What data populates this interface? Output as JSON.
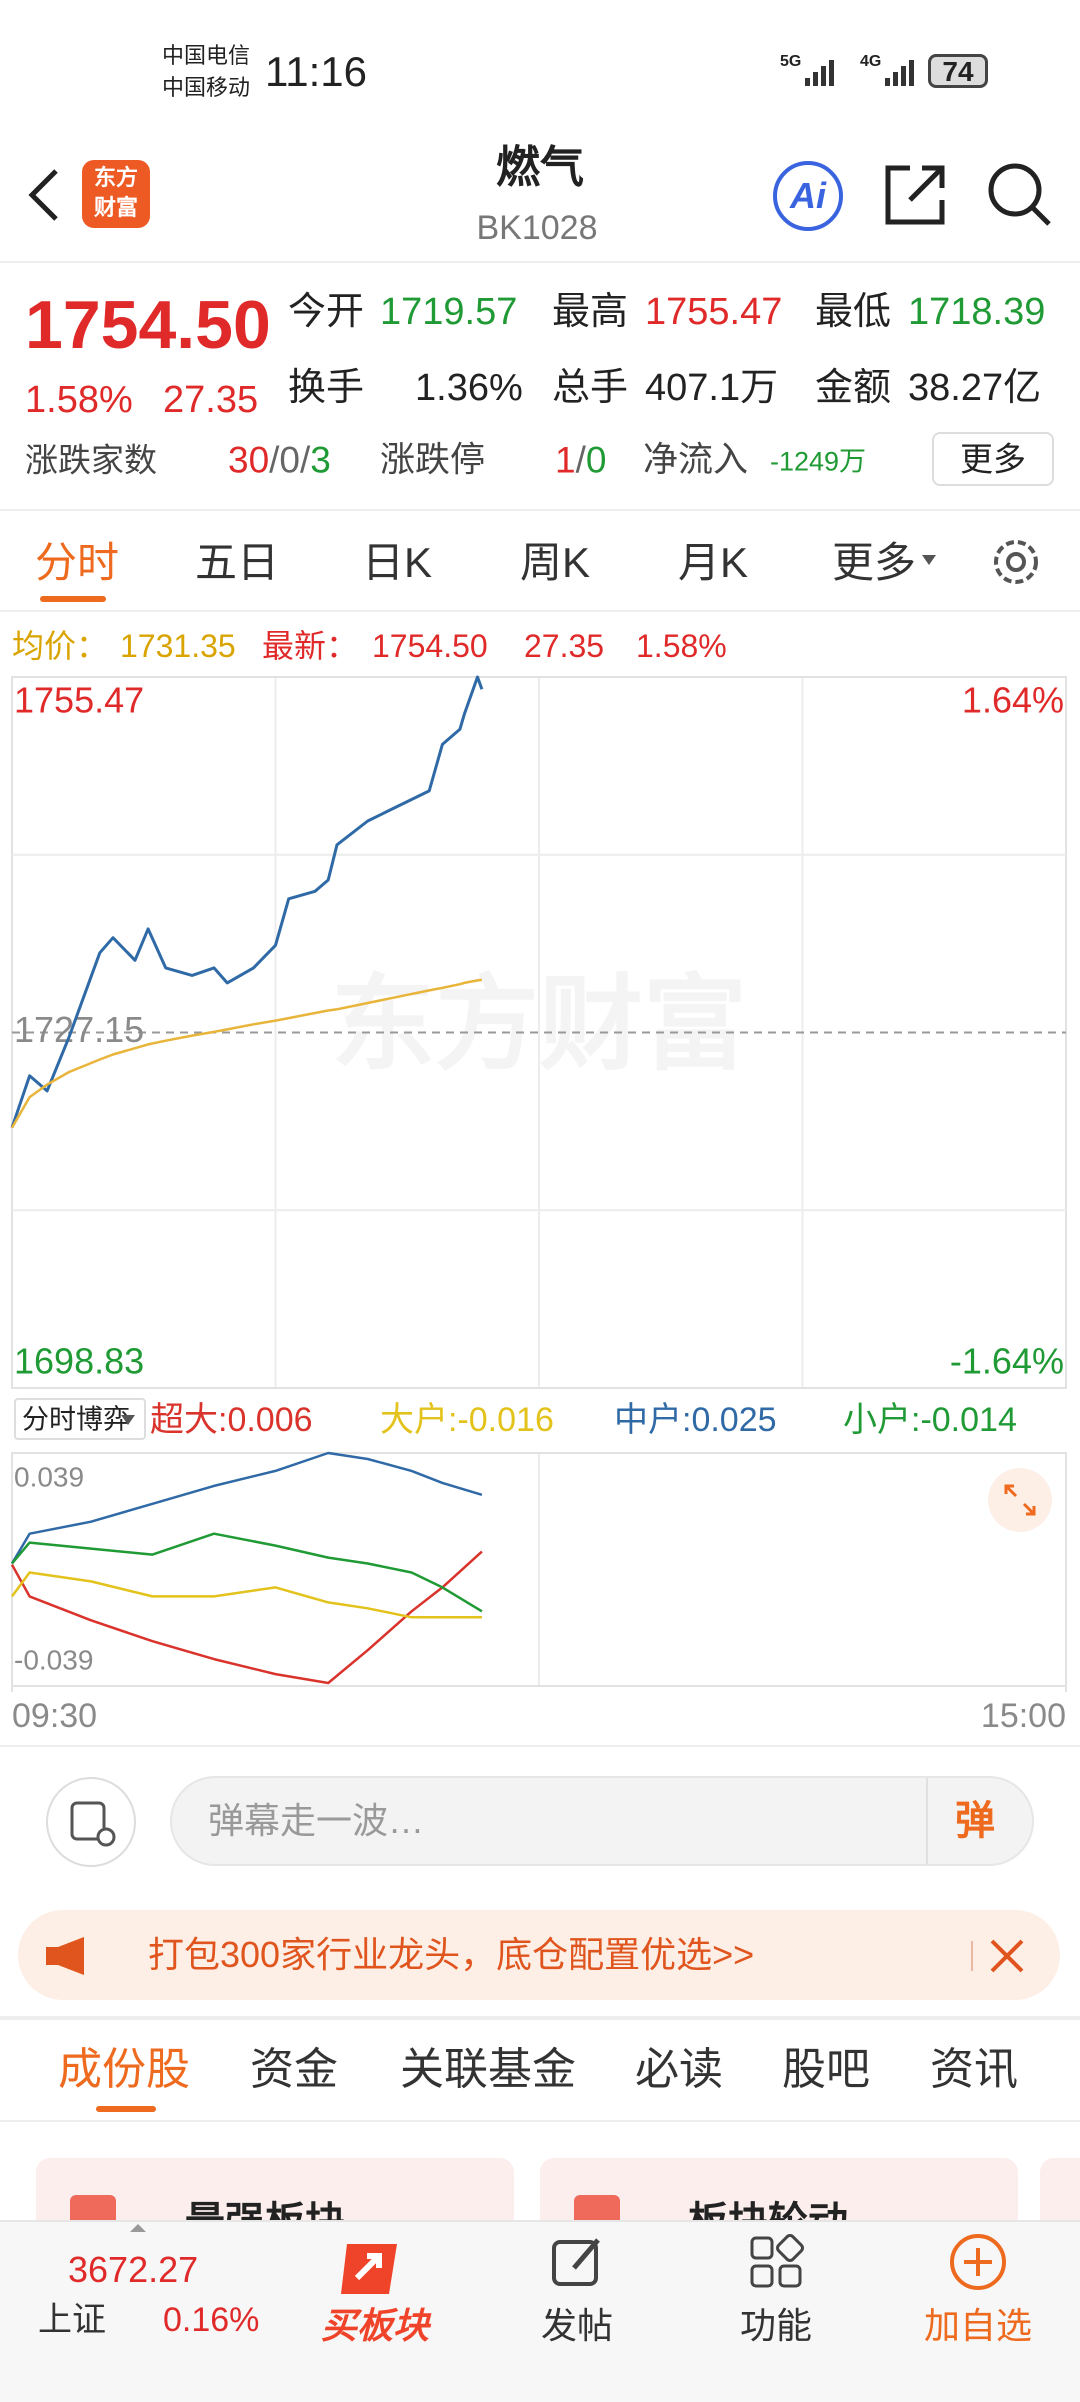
{
  "status_bar": {
    "carrier_1": "中国电信",
    "carrier_2": "中国移动",
    "time": "11:16",
    "network_1": "5G",
    "network_2": "4G",
    "battery": "74"
  },
  "header": {
    "logo_lines": [
      "东方",
      "财富"
    ],
    "title": "燃气",
    "code": "BK1028",
    "ai": "Ai"
  },
  "quote": {
    "price": "1754.50",
    "change_pct": "1.58%",
    "change": "27.35",
    "fields": [
      {
        "label": "今开",
        "value": "1719.57"
      },
      {
        "label": "最高",
        "value": "1755.47"
      },
      {
        "label": "最低",
        "value": "1718.39"
      },
      {
        "label": "换手",
        "value": "1.36%"
      },
      {
        "label": "总手",
        "value": "407.1万"
      },
      {
        "label": "金额",
        "value": "38.27亿"
      }
    ],
    "breadth_label": "涨跌家数",
    "breadth_parts": [
      "30",
      "/0/",
      "3"
    ],
    "limit_label": "涨跌停",
    "limit_parts": [
      "1",
      "/",
      "0"
    ],
    "net_inflow_label": "净流入",
    "net_inflow": "-1249万",
    "more": "更多"
  },
  "period_tabs": [
    "分时",
    "五日",
    "日K",
    "周K",
    "月K",
    "更多"
  ],
  "info_line": {
    "avg_label": "均价：",
    "avg": "1731.35",
    "last_label": "最新：",
    "last": "1754.50",
    "change": "27.35",
    "change_pct": "1.58%"
  },
  "chart_data": [
    {
      "type": "line",
      "watermark": "东方财富",
      "x": [
        0,
        4,
        8,
        13,
        20,
        23,
        28,
        31,
        35,
        41,
        46,
        49,
        55,
        60,
        63,
        69,
        72,
        74,
        81,
        88,
        95,
        98,
        102,
        103,
        106,
        107
      ],
      "xlim": [
        0,
        240
      ],
      "ylim": [
        1698.83,
        1755.47
      ],
      "yticks": [
        1698.83,
        1727.15,
        1755.47
      ],
      "y2lim": [
        -1.64,
        1.64
      ],
      "y2ticks": [
        {
          "value": -1.64,
          "label": "-1.64%"
        },
        {
          "value": 1.64,
          "label": "1.64%"
        }
      ],
      "series": [
        {
          "color": "#2f6aa6",
          "values": [
            1719.57,
            1723.7,
            1722.5,
            1726.8,
            1733.5,
            1734.7,
            1732.9,
            1735.4,
            1732.3,
            1731.7,
            1732.3,
            1731.1,
            1732.3,
            1734.1,
            1737.8,
            1738.4,
            1739.3,
            1742.1,
            1744.0,
            1745.2,
            1746.4,
            1750.1,
            1751.3,
            1752.5,
            1755.47,
            1754.5
          ]
        },
        {
          "color": "#e9b43a",
          "values": [
            1719.57,
            1722.0,
            1723.0,
            1724.0,
            1725.0,
            1725.4,
            1725.9,
            1726.2,
            1726.5,
            1726.9,
            1727.2,
            1727.4,
            1727.8,
            1728.1,
            1728.3,
            1728.7,
            1728.9,
            1729.0,
            1729.5,
            1730.0,
            1730.5,
            1730.7,
            1731.0,
            1731.1,
            1731.3,
            1731.35
          ]
        }
      ]
    },
    {
      "type": "line",
      "selector": "分时博弈",
      "x": [
        0,
        4,
        18,
        32,
        46,
        60,
        72,
        81,
        91,
        98,
        107
      ],
      "xlim": [
        0,
        240
      ],
      "xticks": [
        {
          "value": 0,
          "label": "09:30"
        },
        {
          "value": 240,
          "label": "15:00"
        }
      ],
      "ylim": [
        -0.039,
        0.039
      ],
      "yticks": [
        -0.039,
        0.039
      ],
      "series": [
        {
          "name": "超大:0.006",
          "color": "#d9332c",
          "values": [
            0.0016,
            -0.009,
            -0.017,
            -0.024,
            -0.03,
            -0.035,
            -0.038,
            -0.027,
            -0.014,
            -0.006,
            0.006
          ]
        },
        {
          "name": "大户:-0.016",
          "color": "#e3c21c",
          "values": [
            -0.009,
            -0.001,
            -0.004,
            -0.009,
            -0.009,
            -0.006,
            -0.011,
            -0.013,
            -0.016,
            -0.016,
            -0.016
          ]
        },
        {
          "name": "中户:0.025",
          "color": "#2f6aa6",
          "values": [
            0.002,
            0.012,
            0.016,
            0.022,
            0.028,
            0.033,
            0.039,
            0.037,
            0.033,
            0.029,
            0.025
          ]
        },
        {
          "name": "小户:-0.014",
          "color": "#1f9a35",
          "values": [
            0.002,
            0.009,
            0.007,
            0.005,
            0.012,
            0.008,
            0.004,
            0.002,
            -0.001,
            -0.006,
            -0.014
          ]
        }
      ]
    }
  ],
  "comment_bar": {
    "placeholder": "弹幕走一波…",
    "button": "弹"
  },
  "banner": "打包300家行业龙头，底仓配置优选>>",
  "content_tabs": [
    "成份股",
    "资金",
    "关联基金",
    "必读",
    "股吧",
    "资讯"
  ],
  "cards": [
    "最强板块",
    "板块轮动"
  ],
  "bottom_nav": {
    "index_value": "3672.27",
    "index_name": "上证",
    "index_change": "0.16%",
    "items": [
      "买板块",
      "发帖",
      "功能",
      "加自选"
    ]
  }
}
